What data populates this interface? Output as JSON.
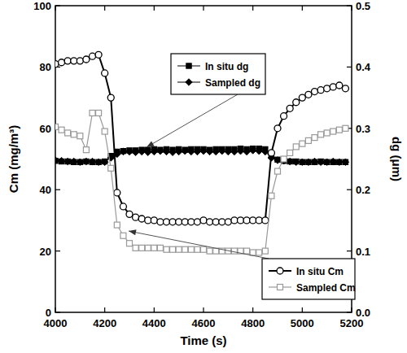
{
  "chart_data": {
    "type": "line",
    "x_label": "Time (s)",
    "y_label": "Cm (mg/m³)",
    "y2_label": "dg (μm)",
    "x": [
      4000,
      4025,
      4050,
      4075,
      4100,
      4125,
      4150,
      4175,
      4200,
      4225,
      4250,
      4275,
      4300,
      4325,
      4350,
      4375,
      4400,
      4425,
      4450,
      4475,
      4500,
      4525,
      4550,
      4575,
      4600,
      4625,
      4650,
      4675,
      4700,
      4725,
      4750,
      4775,
      4800,
      4825,
      4850,
      4875,
      4900,
      4925,
      4950,
      4975,
      5000,
      5025,
      5050,
      5075,
      5100,
      5125,
      5150,
      5175
    ],
    "xlim": [
      4000,
      5200
    ],
    "xticks": [
      4000,
      4200,
      4400,
      4600,
      4800,
      5000,
      5200
    ],
    "ylim": [
      0,
      100
    ],
    "yticks": [
      0,
      20,
      40,
      60,
      80,
      100
    ],
    "y2lim": [
      0,
      0.5
    ],
    "y2ticks": [
      {
        "value": 0,
        "label": "0.0"
      },
      0.1,
      0.2,
      0.3,
      0.4,
      0.5
    ],
    "series": [
      {
        "name": "In situ dg",
        "axis": "y2",
        "color": "#000000",
        "marker": "square",
        "line_style": "solid",
        "values": [
          0.247,
          0.246,
          0.246,
          0.245,
          0.245,
          0.246,
          0.245,
          0.245,
          0.246,
          0.255,
          0.262,
          0.263,
          0.264,
          0.264,
          0.265,
          0.265,
          0.266,
          0.265,
          0.266,
          0.265,
          0.266,
          0.265,
          0.266,
          0.266,
          0.266,
          0.265,
          0.266,
          0.266,
          0.266,
          0.266,
          0.267,
          0.266,
          0.267,
          0.267,
          0.266,
          0.255,
          0.249,
          0.247,
          0.246,
          0.246,
          0.245,
          0.245,
          0.245,
          0.246,
          0.245,
          0.245,
          0.245,
          0.245
        ]
      },
      {
        "name": "Sampled dg",
        "axis": "y2",
        "color": "#000000",
        "marker": "diamond",
        "line_style": "solid",
        "values": [
          0.248,
          0.247,
          0.246,
          0.246,
          0.245,
          0.246,
          0.246,
          0.245,
          0.245,
          0.252,
          0.258,
          0.262,
          0.262,
          0.261,
          0.262,
          0.261,
          0.262,
          0.263,
          0.262,
          0.261,
          0.262,
          0.263,
          0.262,
          0.262,
          0.263,
          0.262,
          0.262,
          0.263,
          0.262,
          0.262,
          0.263,
          0.262,
          0.264,
          0.263,
          0.262,
          0.252,
          0.248,
          0.247,
          0.246,
          0.245,
          0.245,
          0.245,
          0.246,
          0.245,
          0.245,
          0.246,
          0.245,
          0.245
        ]
      },
      {
        "name": "In situ Cm",
        "axis": "y",
        "color": "#000000",
        "marker": "circle-open",
        "line_style": "solid",
        "values": [
          81,
          81.5,
          82,
          82,
          82,
          82.5,
          83.5,
          84,
          78,
          70,
          39,
          34.5,
          32,
          31,
          30.5,
          30,
          30,
          29.5,
          29.5,
          29.5,
          29.5,
          29.5,
          29.5,
          29.5,
          30,
          29.5,
          29.5,
          29.5,
          29.5,
          30,
          30,
          30,
          30,
          30,
          30,
          52,
          60,
          64,
          66.5,
          68.5,
          70,
          71,
          72,
          72.5,
          73,
          73.5,
          74,
          73
        ]
      },
      {
        "name": "Sampled Cm",
        "axis": "y",
        "color": "#999999",
        "marker": "square-open",
        "line_style": "solid",
        "values": [
          60.5,
          59.5,
          58.5,
          58,
          57.5,
          53,
          65,
          65,
          59,
          47,
          28.5,
          25,
          22.5,
          21,
          21,
          21,
          21,
          21,
          20.5,
          20.5,
          20.5,
          20.5,
          20.5,
          20.5,
          20.5,
          20,
          20,
          20,
          20,
          20,
          20,
          20,
          19.5,
          19.5,
          20,
          38,
          46,
          50,
          52,
          54,
          55,
          56,
          57,
          58,
          58.5,
          59,
          59.5,
          60
        ]
      }
    ]
  }
}
